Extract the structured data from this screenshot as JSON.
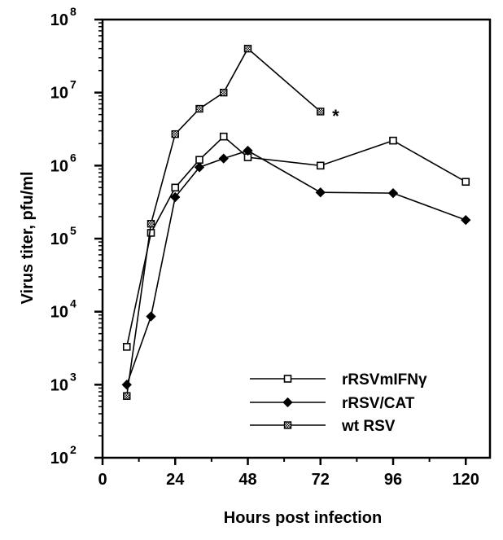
{
  "chart_data": {
    "type": "line",
    "xlabel": "Hours post infection",
    "ylabel": "Virus titer, pfu/ml",
    "xlim": [
      0,
      128
    ],
    "ylim": [
      100,
      100000000
    ],
    "yscale": "log",
    "x_ticks": [
      0,
      24,
      48,
      72,
      96,
      120
    ],
    "x_tick_labels": [
      "0",
      "24",
      "48",
      "72",
      "96",
      "120"
    ],
    "y_ticks": [
      {
        "value": 100,
        "base": "10",
        "exp": "2"
      },
      {
        "value": 1000,
        "base": "10",
        "exp": "3"
      },
      {
        "value": 10000,
        "base": "10",
        "exp": "4"
      },
      {
        "value": 100000,
        "base": "10",
        "exp": "5"
      },
      {
        "value": 1000000,
        "base": "10",
        "exp": "6"
      },
      {
        "value": 10000000,
        "base": "10",
        "exp": "7"
      },
      {
        "value": 100000000,
        "base": "10",
        "exp": "8"
      }
    ],
    "grid": false,
    "legend_position": "bottom-right",
    "series": [
      {
        "name": "rRSVmIFNγ",
        "marker": "open-square",
        "color": "#000000",
        "points": [
          [
            8,
            3300
          ],
          [
            16,
            120000
          ],
          [
            24,
            500000
          ],
          [
            32,
            1200000
          ],
          [
            40,
            2500000
          ],
          [
            48,
            1300000
          ],
          [
            72,
            1000000
          ],
          [
            96,
            2200000
          ],
          [
            120,
            600000
          ]
        ]
      },
      {
        "name": "rRSV/CAT",
        "marker": "filled-diamond",
        "color": "#000000",
        "points": [
          [
            8,
            1000
          ],
          [
            16,
            8600
          ],
          [
            24,
            370000
          ],
          [
            32,
            950000
          ],
          [
            40,
            1250000
          ],
          [
            48,
            1600000
          ],
          [
            72,
            430000
          ],
          [
            96,
            420000
          ],
          [
            120,
            180000
          ]
        ]
      },
      {
        "name": "wt RSV",
        "marker": "hatched-square",
        "color": "#000000",
        "points": [
          [
            8,
            700
          ],
          [
            16,
            160000
          ],
          [
            24,
            2700000
          ],
          [
            32,
            6000000
          ],
          [
            40,
            10000000
          ],
          [
            48,
            40000000
          ],
          [
            72,
            5500000
          ]
        ]
      }
    ],
    "annotations": [
      {
        "text": "*",
        "x": 77,
        "y": 5500000
      }
    ]
  }
}
